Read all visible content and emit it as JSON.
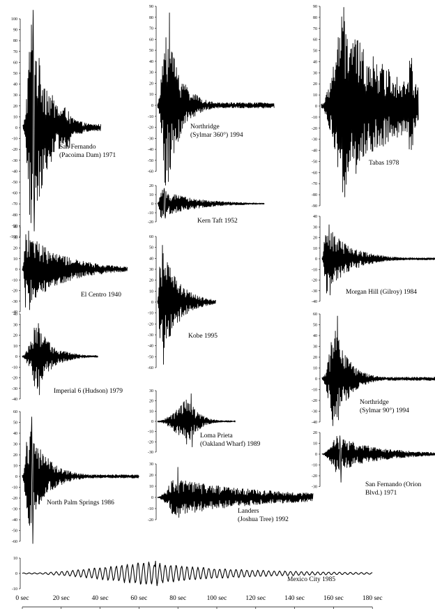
{
  "chart_data": [
    {
      "type": "line",
      "title": "San Fernando (Pacoima Dam) 1971",
      "caption_lines": [
        "San Fernando",
        "(Pacoima Dam) 1971"
      ],
      "y_ticks": [
        "100",
        "90",
        "80",
        "70",
        "60",
        "50",
        "40",
        "30",
        "20",
        "10",
        "0",
        "-10",
        "-20",
        "-30",
        "-40",
        "-50",
        "-60",
        "-70",
        "-80",
        "-90",
        "-100"
      ],
      "ylim": [
        -100,
        100
      ],
      "record_seconds": 40,
      "peak_positive": 108,
      "peak_negative": -95,
      "max_amplitude": 105
    },
    {
      "type": "line",
      "title": "Northridge (Sylmar 360°) 1994",
      "caption_lines": [
        "Northridge",
        "(Sylmar 360°) 1994"
      ],
      "y_ticks": [
        "90",
        "80",
        "70",
        "60",
        "50",
        "40",
        "30",
        "20",
        "10",
        "0",
        "-10",
        "-20",
        "-30",
        "-40",
        "-50",
        "-60"
      ],
      "ylim": [
        -60,
        90
      ],
      "record_seconds": 60,
      "peak_positive": 84,
      "peak_negative": -58,
      "max_amplitude": 84
    },
    {
      "type": "line",
      "title": "Tabas 1978",
      "caption_lines": [
        "Tabas 1978"
      ],
      "y_ticks": [
        "90",
        "80",
        "70",
        "60",
        "50",
        "40",
        "30",
        "20",
        "10",
        "0",
        "-10",
        "-20",
        "-30",
        "-40",
        "-50",
        "-60",
        "-70",
        "-80",
        "-90"
      ],
      "ylim": [
        -90,
        90
      ],
      "record_seconds": 50,
      "peak_positive": 89,
      "peak_negative": -82,
      "max_amplitude": 82
    },
    {
      "type": "line",
      "title": "Kern Taft 1952",
      "caption_lines": [
        "Kern Taft 1952"
      ],
      "y_ticks": [
        "20",
        "10",
        "0",
        "-10",
        "-20"
      ],
      "ylim": [
        -20,
        20
      ],
      "record_seconds": 55,
      "peak_positive": 17,
      "peak_negative": -16,
      "max_amplitude": 16
    },
    {
      "type": "line",
      "title": "El Centro 1940",
      "caption_lines": [
        "El Centro 1940"
      ],
      "y_ticks": [
        "40",
        "30",
        "20",
        "10",
        "0",
        "-10",
        "-20",
        "-30",
        "-40"
      ],
      "ylim": [
        -40,
        40
      ],
      "record_seconds": 54,
      "peak_positive": 36,
      "peak_negative": -38,
      "max_amplitude": 36
    },
    {
      "type": "line",
      "title": "Kobe 1995",
      "caption_lines": [
        "Kobe 1995"
      ],
      "y_ticks": [
        "60",
        "50",
        "40",
        "30",
        "20",
        "10",
        "0",
        "-10",
        "-20",
        "-30",
        "-40",
        "-50",
        "-60"
      ],
      "ylim": [
        -60,
        60
      ],
      "record_seconds": 30,
      "peak_positive": 52,
      "peak_negative": -57,
      "max_amplitude": 57
    },
    {
      "type": "line",
      "title": "Morgan Hill (Gilroy) 1984",
      "caption_lines": [
        "Morgan Hill (Gilroy) 1984"
      ],
      "y_ticks": [
        "40",
        "30",
        "20",
        "10",
        "0",
        "-10",
        "-20",
        "-30",
        "-40"
      ],
      "ylim": [
        -40,
        40
      ],
      "record_seconds": 60,
      "peak_positive": 32,
      "peak_negative": -34,
      "max_amplitude": 34
    },
    {
      "type": "line",
      "title": "Imperial 6 (Hudson) 1979",
      "caption_lines": [
        "Imperial 6 (Hudson) 1979"
      ],
      "y_ticks": [
        "40",
        "30",
        "20",
        "10",
        "0",
        "-10",
        "-20",
        "-30",
        "-40"
      ],
      "ylim": [
        -40,
        40
      ],
      "record_seconds": 39,
      "peak_positive": 31,
      "peak_negative": -36,
      "max_amplitude": 33
    },
    {
      "type": "line",
      "title": "Northridge (Sylmar 90°) 1994",
      "caption_lines": [
        "Northridge",
        "(Sylmar 90°) 1994"
      ],
      "y_ticks": [
        "60",
        "50",
        "40",
        "30",
        "20",
        "10",
        "0",
        "-10",
        "-20",
        "-30",
        "-40"
      ],
      "ylim": [
        -40,
        60
      ],
      "record_seconds": 60,
      "peak_positive": 58,
      "peak_negative": -38,
      "max_amplitude": 52
    },
    {
      "type": "line",
      "title": "Loma Prieta (Oakland Wharf) 1989",
      "caption_lines": [
        "Loma Prieta",
        "(Oakland Wharf) 1989"
      ],
      "y_ticks": [
        "30",
        "20",
        "10",
        "0",
        "-10",
        "-20",
        "-30"
      ],
      "ylim": [
        -30,
        30
      ],
      "record_seconds": 40,
      "peak_positive": 27,
      "peak_negative": -25,
      "max_amplitude": 25
    },
    {
      "type": "line",
      "title": "North Palm Springs 1986",
      "caption_lines": [
        "North Palm Springs 1986"
      ],
      "y_ticks": [
        "60",
        "50",
        "40",
        "30",
        "20",
        "10",
        "0",
        "-10",
        "-20",
        "-30",
        "-40",
        "-50",
        "-60"
      ],
      "ylim": [
        -60,
        60
      ],
      "record_seconds": 60,
      "peak_positive": 55,
      "peak_negative": -62,
      "max_amplitude": 52
    },
    {
      "type": "line",
      "title": "San Fernando (Orion Blvd.) 1971",
      "caption_lines": [
        "San Fernando (Orion",
        "Blvd.) 1971"
      ],
      "y_ticks": [
        "20",
        "10",
        "0",
        "-10",
        "-20",
        "-30"
      ],
      "ylim": [
        -30,
        20
      ],
      "record_seconds": 60,
      "peak_positive": 17,
      "peak_negative": -26,
      "max_amplitude": 17
    },
    {
      "type": "line",
      "title": "Landers (Joshua Tree) 1992",
      "caption_lines": [
        "Landers",
        "(Joshua Tree) 1992"
      ],
      "y_ticks": [
        "30",
        "20",
        "10",
        "0",
        "-10",
        "-20"
      ],
      "ylim": [
        -20,
        30
      ],
      "record_seconds": 80,
      "peak_positive": 27,
      "peak_negative": -18,
      "max_amplitude": 17
    },
    {
      "type": "line",
      "title": "Mexico City 1985",
      "caption_lines": [
        "Mexico City 1985"
      ],
      "y_ticks": [
        "10",
        "0",
        "-10"
      ],
      "ylim": [
        -10,
        10
      ],
      "record_seconds": 180,
      "peak_positive": 8,
      "peak_negative": -8,
      "max_amplitude": 8
    }
  ],
  "time_axis": {
    "labels": [
      "0 sec",
      "20 sec",
      "40 sec",
      "60 sec",
      "80 sec",
      "100 sec",
      "120 sec",
      "140 sec",
      "160 sec",
      "180 sec"
    ],
    "values": [
      0,
      20,
      40,
      60,
      80,
      100,
      120,
      140,
      160,
      180
    ],
    "unit": "sec"
  }
}
